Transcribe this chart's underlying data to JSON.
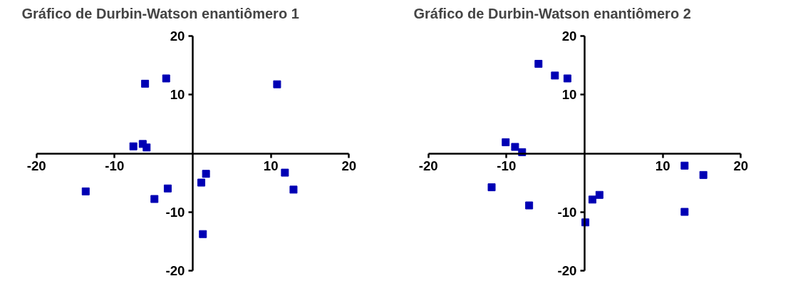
{
  "chart_data": [
    {
      "type": "scatter",
      "title": "Gráfico de Durbin-Watson enantiômero 1",
      "color": "#0000b4",
      "marker": "square",
      "grid": false,
      "x": [
        -13.7,
        -7.6,
        -6.4,
        -5.9,
        -6.1,
        -3.4,
        -4.9,
        -3.2,
        1.1,
        1.7,
        1.3,
        10.8,
        11.8,
        12.9
      ],
      "values": [
        -6.5,
        1.2,
        1.6,
        1.0,
        11.9,
        12.8,
        -7.8,
        -6.0,
        -5.0,
        -3.5,
        -13.8,
        11.8,
        -3.3,
        -6.2
      ],
      "xlim": [
        -20,
        20
      ],
      "ylim": [
        -20,
        20
      ],
      "xticks": [
        -20,
        -10,
        10,
        20
      ],
      "yticks": [
        -20,
        -10,
        10,
        20
      ]
    },
    {
      "type": "scatter",
      "title": "Gráfico de Durbin-Watson enantiômero 2",
      "color": "#0000b4",
      "marker": "square",
      "grid": false,
      "x": [
        -5.9,
        -3.8,
        -2.2,
        -10.1,
        -8.9,
        -8.0,
        -11.9,
        -7.1,
        0.1,
        1.0,
        1.9,
        12.8,
        15.2,
        12.8
      ],
      "values": [
        15.3,
        13.3,
        12.8,
        1.9,
        1.1,
        0.2,
        -5.8,
        -8.9,
        -11.8,
        -7.9,
        -7.1,
        -2.1,
        -3.7,
        -10.0
      ],
      "xlim": [
        -20,
        20
      ],
      "ylim": [
        -20,
        20
      ],
      "xticks": [
        -20,
        -10,
        10,
        20
      ],
      "yticks": [
        -20,
        -10,
        10,
        20
      ]
    }
  ]
}
